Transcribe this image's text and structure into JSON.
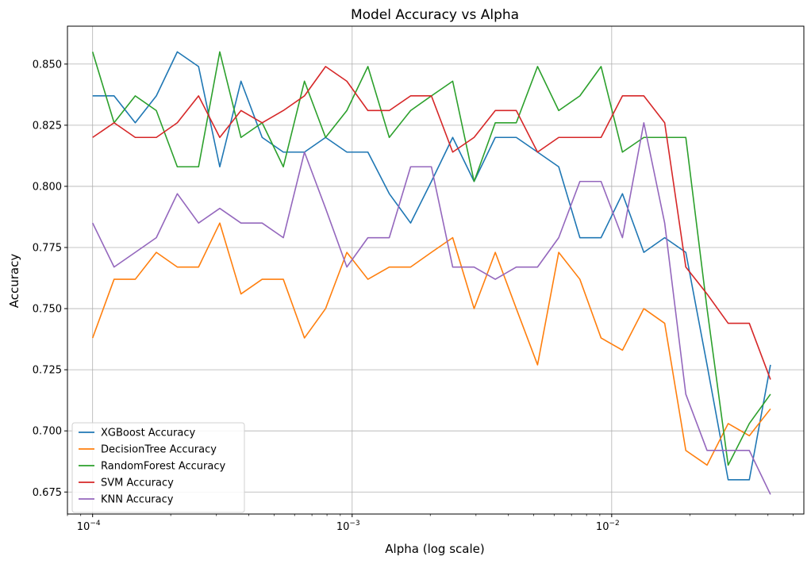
{
  "chart_data": {
    "type": "line",
    "title": "Model Accuracy vs Alpha",
    "xlabel": "Alpha (log scale)",
    "ylabel": "Accuracy",
    "xscale": "log",
    "xlim": [
      8e-05,
      0.055
    ],
    "ylim": [
      0.666,
      0.8655
    ],
    "grid": true,
    "legend_position": "lower-left",
    "x_ticks": [
      {
        "value": 0.0001,
        "base": "10",
        "exp": "−4"
      },
      {
        "value": 0.001,
        "base": "10",
        "exp": "−3"
      },
      {
        "value": 0.01,
        "base": "10",
        "exp": "−2"
      }
    ],
    "y_ticks": [
      {
        "value": 0.675,
        "label": "0.675"
      },
      {
        "value": 0.7,
        "label": "0.700"
      },
      {
        "value": 0.725,
        "label": "0.725"
      },
      {
        "value": 0.75,
        "label": "0.750"
      },
      {
        "value": 0.775,
        "label": "0.775"
      },
      {
        "value": 0.8,
        "label": "0.800"
      },
      {
        "value": 0.825,
        "label": "0.825"
      },
      {
        "value": 0.85,
        "label": "0.850"
      }
    ],
    "x": [
      0.0001,
      0.000121,
      0.000146,
      0.000176,
      0.000212,
      0.000256,
      0.000309,
      0.000373,
      0.00045,
      0.000543,
      0.000655,
      0.00079,
      0.000954,
      0.00115,
      0.00139,
      0.00168,
      0.00202,
      0.00244,
      0.00295,
      0.00356,
      0.00429,
      0.00518,
      0.00625,
      0.00754,
      0.0091,
      0.011,
      0.0133,
      0.016,
      0.0193,
      0.0233,
      0.0281,
      0.0339,
      0.0409
    ],
    "series": [
      {
        "name": "XGBoost Accuracy",
        "color": "#1f77b4",
        "values": [
          0.837,
          0.837,
          0.826,
          0.837,
          0.855,
          0.849,
          0.808,
          0.843,
          0.82,
          0.814,
          0.814,
          0.82,
          0.814,
          0.814,
          0.797,
          0.785,
          0.802,
          0.82,
          0.802,
          0.82,
          0.82,
          0.814,
          0.808,
          0.779,
          0.779,
          0.797,
          0.773,
          0.779,
          0.773,
          0.727,
          0.68,
          0.68,
          0.727
        ]
      },
      {
        "name": "DecisionTree Accuracy",
        "color": "#ff7f0e",
        "values": [
          0.738,
          0.762,
          0.762,
          0.773,
          0.767,
          0.767,
          0.785,
          0.756,
          0.762,
          0.762,
          0.738,
          0.75,
          0.773,
          0.762,
          0.767,
          0.767,
          0.773,
          0.779,
          0.75,
          0.773,
          0.75,
          0.727,
          0.773,
          0.762,
          0.738,
          0.733,
          0.75,
          0.744,
          0.692,
          0.686,
          0.703,
          0.698,
          0.709
        ]
      },
      {
        "name": "RandomForest Accuracy",
        "color": "#2ca02c",
        "values": [
          0.855,
          0.826,
          0.837,
          0.831,
          0.808,
          0.808,
          0.855,
          0.82,
          0.826,
          0.808,
          0.843,
          0.82,
          0.831,
          0.849,
          0.82,
          0.831,
          0.837,
          0.843,
          0.802,
          0.826,
          0.826,
          0.849,
          0.831,
          0.837,
          0.849,
          0.814,
          0.82,
          0.82,
          0.82,
          0.75,
          0.686,
          0.703,
          0.715
        ]
      },
      {
        "name": "SVM Accuracy",
        "color": "#d62728",
        "values": [
          0.82,
          0.826,
          0.82,
          0.82,
          0.826,
          0.837,
          0.82,
          0.831,
          0.826,
          0.831,
          0.837,
          0.849,
          0.843,
          0.831,
          0.831,
          0.837,
          0.837,
          0.814,
          0.82,
          0.831,
          0.831,
          0.814,
          0.82,
          0.82,
          0.82,
          0.837,
          0.837,
          0.826,
          0.767,
          0.756,
          0.744,
          0.744,
          0.721
        ]
      },
      {
        "name": "KNN Accuracy",
        "color": "#9467bd",
        "values": [
          0.785,
          0.767,
          0.773,
          0.779,
          0.797,
          0.785,
          0.791,
          0.785,
          0.785,
          0.779,
          0.814,
          0.791,
          0.767,
          0.779,
          0.779,
          0.808,
          0.808,
          0.767,
          0.767,
          0.762,
          0.767,
          0.767,
          0.779,
          0.802,
          0.802,
          0.779,
          0.826,
          0.785,
          0.715,
          0.692,
          0.692,
          0.692,
          0.674
        ]
      }
    ]
  }
}
